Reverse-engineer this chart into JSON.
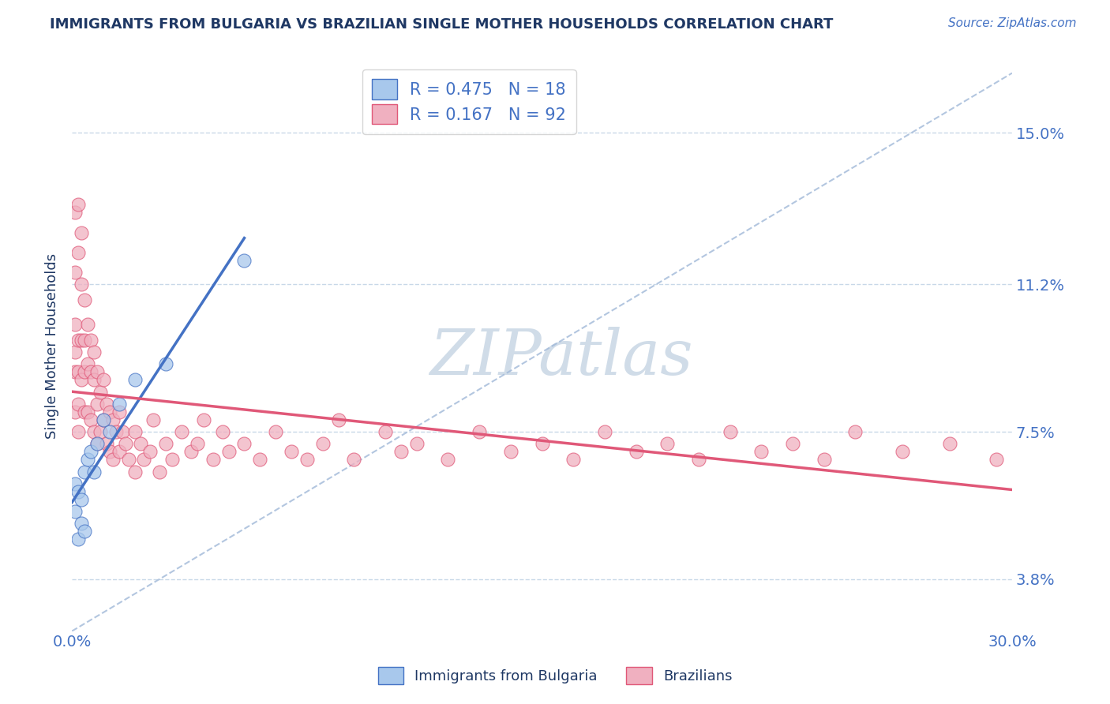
{
  "title": "IMMIGRANTS FROM BULGARIA VS BRAZILIAN SINGLE MOTHER HOUSEHOLDS CORRELATION CHART",
  "source": "Source: ZipAtlas.com",
  "ylabel": "Single Mother Households",
  "xlim": [
    0.0,
    0.3
  ],
  "ylim": [
    0.025,
    0.168
  ],
  "yticks": [
    0.038,
    0.075,
    0.112,
    0.15
  ],
  "ytick_labels": [
    "3.8%",
    "7.5%",
    "11.2%",
    "15.0%"
  ],
  "xticks": [
    0.0,
    0.3
  ],
  "xtick_labels": [
    "0.0%",
    "30.0%"
  ],
  "legend_r1": "R = 0.475",
  "legend_n1": "N = 18",
  "legend_r2": "R = 0.167",
  "legend_n2": "N = 92",
  "blue_color": "#A8C8EC",
  "pink_color": "#F0B0C0",
  "trend_blue": "#4472C4",
  "trend_pink": "#E05878",
  "ref_line_color": "#A0B8D8",
  "label1": "Immigrants from Bulgaria",
  "label2": "Brazilians",
  "bg_color": "#FFFFFF",
  "grid_color": "#C8D8E8",
  "title_color": "#1F3864",
  "axis_color": "#4472C4",
  "watermark_color": "#D0DCE8",
  "blue_scatter_x": [
    0.001,
    0.001,
    0.002,
    0.002,
    0.003,
    0.003,
    0.004,
    0.004,
    0.005,
    0.006,
    0.007,
    0.008,
    0.01,
    0.012,
    0.015,
    0.02,
    0.03,
    0.055
  ],
  "blue_scatter_y": [
    0.062,
    0.055,
    0.06,
    0.048,
    0.058,
    0.052,
    0.065,
    0.05,
    0.068,
    0.07,
    0.065,
    0.072,
    0.078,
    0.075,
    0.082,
    0.088,
    0.092,
    0.118
  ],
  "pink_scatter_x": [
    0.001,
    0.001,
    0.001,
    0.001,
    0.001,
    0.001,
    0.002,
    0.002,
    0.002,
    0.002,
    0.002,
    0.002,
    0.003,
    0.003,
    0.003,
    0.003,
    0.004,
    0.004,
    0.004,
    0.004,
    0.005,
    0.005,
    0.005,
    0.006,
    0.006,
    0.006,
    0.007,
    0.007,
    0.007,
    0.008,
    0.008,
    0.008,
    0.009,
    0.009,
    0.01,
    0.01,
    0.011,
    0.011,
    0.012,
    0.012,
    0.013,
    0.013,
    0.014,
    0.015,
    0.015,
    0.016,
    0.017,
    0.018,
    0.02,
    0.02,
    0.022,
    0.023,
    0.025,
    0.026,
    0.028,
    0.03,
    0.032,
    0.035,
    0.038,
    0.04,
    0.042,
    0.045,
    0.048,
    0.05,
    0.055,
    0.06,
    0.065,
    0.07,
    0.075,
    0.08,
    0.085,
    0.09,
    0.1,
    0.105,
    0.11,
    0.12,
    0.13,
    0.14,
    0.15,
    0.16,
    0.17,
    0.18,
    0.19,
    0.2,
    0.21,
    0.22,
    0.23,
    0.24,
    0.25,
    0.265,
    0.28,
    0.295
  ],
  "pink_scatter_y": [
    0.13,
    0.115,
    0.102,
    0.095,
    0.09,
    0.08,
    0.132,
    0.12,
    0.098,
    0.09,
    0.082,
    0.075,
    0.125,
    0.112,
    0.098,
    0.088,
    0.108,
    0.098,
    0.09,
    0.08,
    0.102,
    0.092,
    0.08,
    0.098,
    0.09,
    0.078,
    0.095,
    0.088,
    0.075,
    0.09,
    0.082,
    0.072,
    0.085,
    0.075,
    0.088,
    0.078,
    0.082,
    0.072,
    0.08,
    0.07,
    0.078,
    0.068,
    0.075,
    0.08,
    0.07,
    0.075,
    0.072,
    0.068,
    0.075,
    0.065,
    0.072,
    0.068,
    0.07,
    0.078,
    0.065,
    0.072,
    0.068,
    0.075,
    0.07,
    0.072,
    0.078,
    0.068,
    0.075,
    0.07,
    0.072,
    0.068,
    0.075,
    0.07,
    0.068,
    0.072,
    0.078,
    0.068,
    0.075,
    0.07,
    0.072,
    0.068,
    0.075,
    0.07,
    0.072,
    0.068,
    0.075,
    0.07,
    0.072,
    0.068,
    0.075,
    0.07,
    0.072,
    0.068,
    0.075,
    0.07,
    0.072,
    0.068
  ]
}
